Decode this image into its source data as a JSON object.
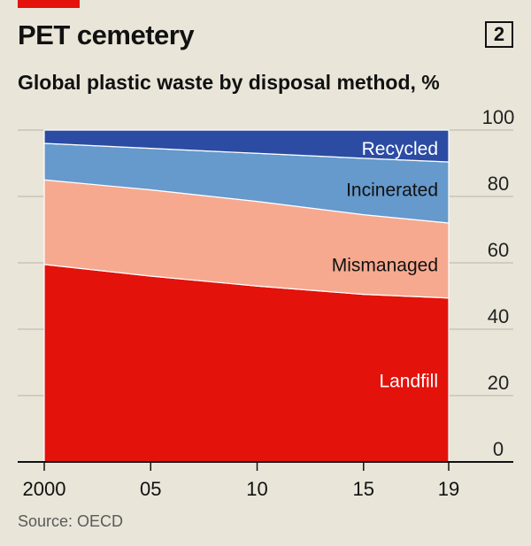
{
  "header": {
    "title": "PET cemetery",
    "badge": "2",
    "subtitle": "Global plastic waste by disposal method, %"
  },
  "footer": {
    "source": "Source: OECD"
  },
  "colors": {
    "background": "#e9e5d9",
    "landfill": "#e3120b",
    "mismanaged": "#f6a98f",
    "incinerated": "#6699cc",
    "recycled": "#2c4ca3",
    "accent": "#e3120b",
    "gridline": "#b7b2a6",
    "axis": "#111111"
  },
  "chart_data": {
    "type": "area",
    "stacked": true,
    "title": "Global plastic waste by disposal method, %",
    "x": [
      2000,
      2005,
      2010,
      2015,
      2019
    ],
    "x_tick_labels": [
      "2000",
      "05",
      "10",
      "15",
      "19"
    ],
    "ylim": [
      0,
      100
    ],
    "y_ticks": [
      0,
      20,
      40,
      60,
      80,
      100
    ],
    "y_tick_labels": [
      "0",
      "20",
      "40",
      "60",
      "80",
      "100"
    ],
    "yaxis_position": "right",
    "grid": true,
    "series": [
      {
        "name": "Landfill",
        "label_color": "#ffffff",
        "color": "#e3120b",
        "values": [
          59.5,
          56,
          53,
          50.5,
          49.4
        ]
      },
      {
        "name": "Mismanaged",
        "label_color": "#111111",
        "color": "#f6a98f",
        "values": [
          25.5,
          26,
          25.5,
          24,
          22.6
        ]
      },
      {
        "name": "Incinerated",
        "label_color": "#111111",
        "color": "#6699cc",
        "values": [
          11,
          12.5,
          14.5,
          17,
          18.4
        ]
      },
      {
        "name": "Recycled",
        "label_color": "#ffffff",
        "color": "#2c4ca3",
        "values": [
          4,
          5.5,
          7,
          8.5,
          9.6
        ]
      }
    ]
  }
}
